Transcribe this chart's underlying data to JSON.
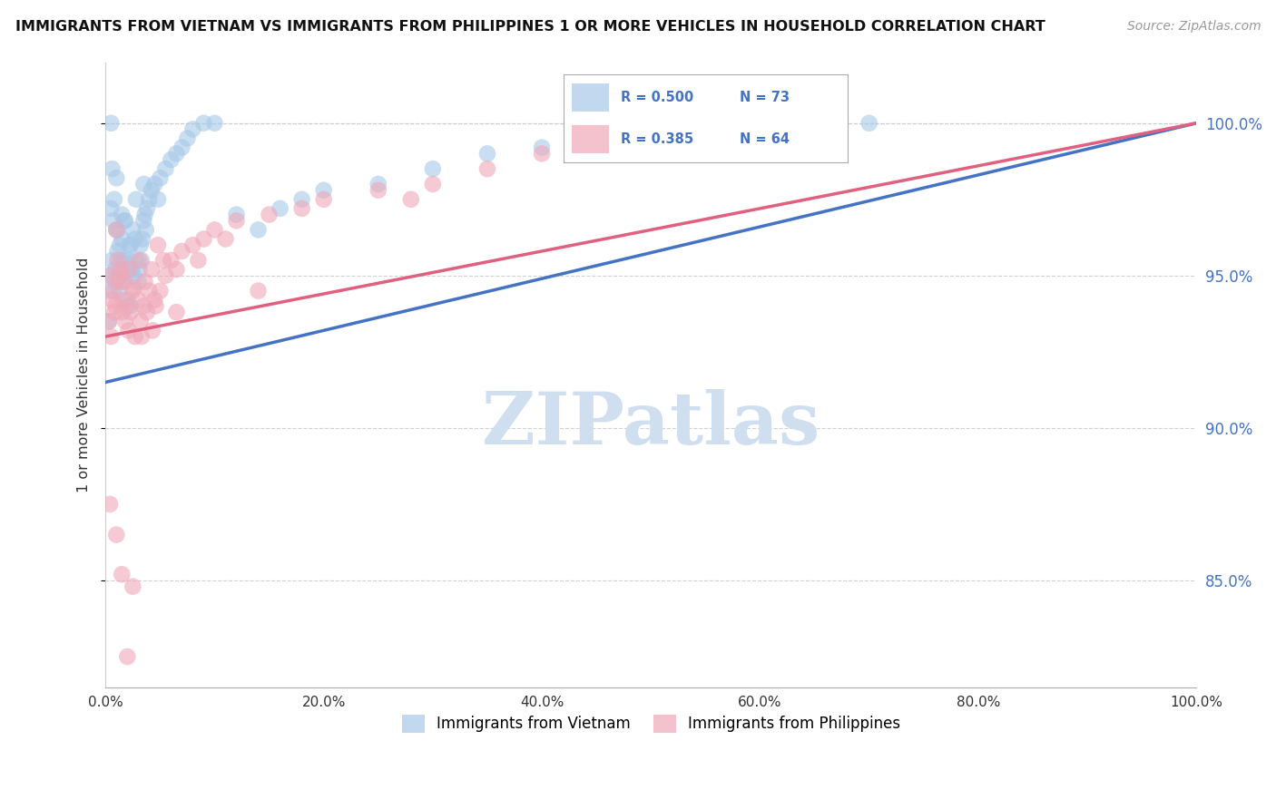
{
  "title": "IMMIGRANTS FROM VIETNAM VS IMMIGRANTS FROM PHILIPPINES 1 OR MORE VEHICLES IN HOUSEHOLD CORRELATION CHART",
  "source": "Source: ZipAtlas.com",
  "ylabel": "1 or more Vehicles in Household",
  "y_ticks": [
    85.0,
    90.0,
    95.0,
    100.0
  ],
  "y_tick_labels": [
    "85.0%",
    "90.0%",
    "95.0%",
    "100.0%"
  ],
  "x_range": [
    0.0,
    100.0
  ],
  "y_range": [
    81.5,
    102.0
  ],
  "legend_blue_r": "0.500",
  "legend_blue_n": "73",
  "legend_pink_r": "0.385",
  "legend_pink_n": "64",
  "legend_label_blue": "Immigrants from Vietnam",
  "legend_label_pink": "Immigrants from Philippines",
  "blue_color": "#a8c8e8",
  "pink_color": "#f0a8b8",
  "line_blue_color": "#4472c4",
  "line_pink_color": "#e06080",
  "watermark": "ZIPatlas",
  "watermark_color": "#d0dff0",
  "blue_scatter_x": [
    0.3,
    0.4,
    0.5,
    0.5,
    0.6,
    0.7,
    0.8,
    0.9,
    1.0,
    1.0,
    1.1,
    1.2,
    1.3,
    1.4,
    1.5,
    1.5,
    1.6,
    1.7,
    1.8,
    2.0,
    2.1,
    2.2,
    2.3,
    2.4,
    2.5,
    2.6,
    2.7,
    2.8,
    3.0,
    3.1,
    3.2,
    3.3,
    3.4,
    3.5,
    3.6,
    3.7,
    3.8,
    4.0,
    4.2,
    4.5,
    4.8,
    5.0,
    5.5,
    6.0,
    6.5,
    7.0,
    7.5,
    8.0,
    9.0,
    10.0,
    12.0,
    14.0,
    16.0,
    18.0,
    20.0,
    25.0,
    30.0,
    35.0,
    40.0,
    50.0,
    60.0,
    65.0,
    70.0,
    0.4,
    0.6,
    0.9,
    1.1,
    1.4,
    1.7,
    2.0,
    2.3,
    2.8,
    3.5
  ],
  "blue_scatter_y": [
    93.5,
    95.0,
    97.2,
    100.0,
    98.5,
    96.8,
    97.5,
    95.2,
    98.2,
    96.5,
    95.8,
    94.5,
    96.0,
    95.5,
    97.0,
    96.2,
    94.8,
    95.5,
    96.8,
    94.2,
    95.5,
    96.0,
    94.0,
    95.2,
    96.5,
    95.0,
    96.2,
    95.5,
    94.8,
    95.2,
    96.0,
    95.5,
    96.2,
    96.8,
    97.0,
    96.5,
    97.2,
    97.5,
    97.8,
    98.0,
    97.5,
    98.2,
    98.5,
    98.8,
    99.0,
    99.2,
    99.5,
    99.8,
    100.0,
    100.0,
    97.0,
    96.5,
    97.2,
    97.5,
    97.8,
    98.0,
    98.5,
    99.0,
    99.2,
    99.5,
    99.8,
    100.0,
    100.0,
    94.5,
    95.5,
    94.8,
    96.5,
    95.0,
    96.8,
    95.2,
    96.0,
    97.5,
    98.0
  ],
  "pink_scatter_x": [
    0.3,
    0.4,
    0.6,
    0.8,
    1.0,
    1.1,
    1.2,
    1.4,
    1.5,
    1.6,
    1.8,
    2.0,
    2.1,
    2.3,
    2.5,
    2.7,
    3.0,
    3.2,
    3.5,
    3.8,
    4.0,
    4.3,
    4.6,
    5.0,
    5.5,
    6.0,
    6.5,
    7.0,
    8.0,
    9.0,
    10.0,
    12.0,
    15.0,
    18.0,
    20.0,
    25.0,
    30.0,
    35.0,
    40.0,
    65.0,
    0.5,
    0.7,
    0.9,
    1.3,
    1.7,
    2.2,
    2.6,
    3.1,
    3.6,
    4.2,
    4.8,
    5.3,
    0.4,
    1.0,
    1.5,
    2.0,
    2.5,
    3.3,
    4.5,
    6.5,
    8.5,
    11.0,
    14.0,
    28.0
  ],
  "pink_scatter_y": [
    93.5,
    95.0,
    94.2,
    93.8,
    96.5,
    95.5,
    94.8,
    95.2,
    93.8,
    94.2,
    93.5,
    94.0,
    93.2,
    93.8,
    94.5,
    93.0,
    94.2,
    93.5,
    94.0,
    93.8,
    94.5,
    93.2,
    94.0,
    94.5,
    95.0,
    95.5,
    95.2,
    95.8,
    96.0,
    96.2,
    96.5,
    96.8,
    97.0,
    97.2,
    97.5,
    97.8,
    98.0,
    98.5,
    99.0,
    100.0,
    93.0,
    94.5,
    94.0,
    95.0,
    94.8,
    95.2,
    94.6,
    95.5,
    94.8,
    95.2,
    96.0,
    95.5,
    87.5,
    86.5,
    85.2,
    82.5,
    84.8,
    93.0,
    94.2,
    93.8,
    95.5,
    96.2,
    94.5,
    97.5
  ]
}
